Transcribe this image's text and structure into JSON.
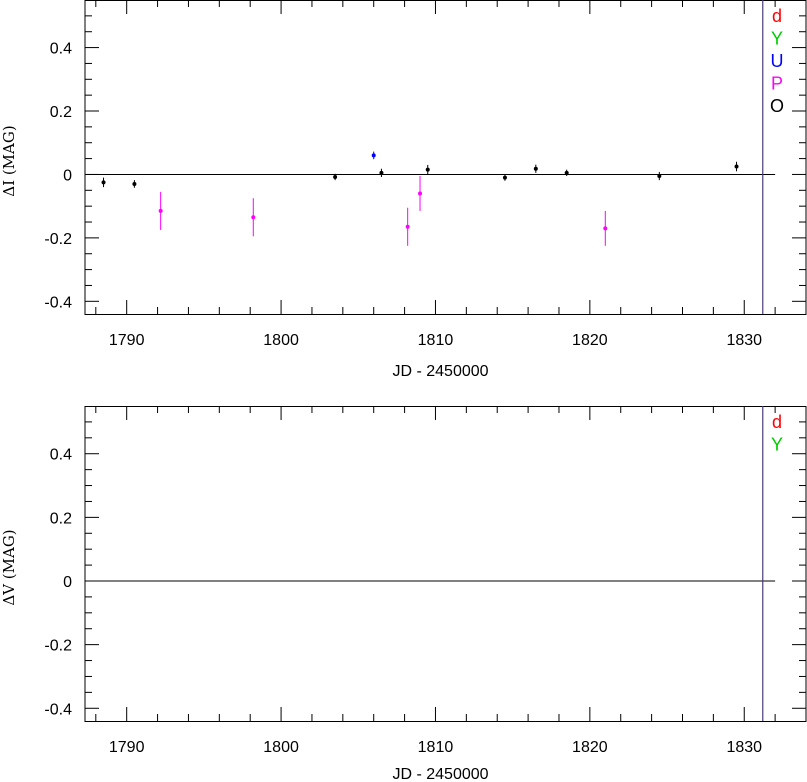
{
  "chart_data": [
    {
      "type": "scatter",
      "title": "",
      "xlabel": "JD - 2450000",
      "ylabel": "ΔI (MAG)",
      "xlim": [
        1787.3,
        1834
      ],
      "ylim": [
        0.55,
        -0.44
      ],
      "x_ticks": [
        1790,
        1800,
        1810,
        1820,
        1830
      ],
      "y_ticks": [
        0.4,
        0.2,
        0,
        -0.2,
        -0.4
      ],
      "y_tick_labels": [
        "0.4",
        "0.2",
        "0",
        "-0.2",
        "-0.4"
      ],
      "zero_line": 0,
      "vertical_marker_x": 1831.2,
      "legend_position": "top-right",
      "legend": [
        {
          "label": "d",
          "color": "#ff0000"
        },
        {
          "label": "Y",
          "color": "#00cc00"
        },
        {
          "label": "U",
          "color": "#0000ff"
        },
        {
          "label": "P",
          "color": "#ff00ff"
        },
        {
          "label": "O",
          "color": "#000000"
        }
      ],
      "series": [
        {
          "name": "O",
          "color": "#000000",
          "points": [
            {
              "x": 1788.5,
              "y": -0.025,
              "err": 0.015
            },
            {
              "x": 1790.5,
              "y": -0.03,
              "err": 0.012
            },
            {
              "x": 1803.5,
              "y": -0.008,
              "err": 0.01
            },
            {
              "x": 1806.5,
              "y": 0.005,
              "err": 0.013
            },
            {
              "x": 1809.5,
              "y": 0.015,
              "err": 0.015
            },
            {
              "x": 1814.5,
              "y": -0.01,
              "err": 0.01
            },
            {
              "x": 1816.5,
              "y": 0.018,
              "err": 0.013
            },
            {
              "x": 1818.5,
              "y": 0.005,
              "err": 0.01
            },
            {
              "x": 1824.5,
              "y": -0.005,
              "err": 0.013
            },
            {
              "x": 1829.5,
              "y": 0.025,
              "err": 0.015
            }
          ]
        },
        {
          "name": "U",
          "color": "#0000ff",
          "points": [
            {
              "x": 1806.0,
              "y": 0.06,
              "err": 0.012
            }
          ]
        },
        {
          "name": "P",
          "color": "#ff00ff",
          "points": [
            {
              "x": 1792.2,
              "y": -0.115,
              "err": 0.06
            },
            {
              "x": 1798.2,
              "y": -0.135,
              "err": 0.06
            },
            {
              "x": 1808.2,
              "y": -0.165,
              "err": 0.06
            },
            {
              "x": 1809.0,
              "y": -0.06,
              "err": 0.055
            },
            {
              "x": 1821.0,
              "y": -0.17,
              "err": 0.055
            }
          ]
        }
      ]
    },
    {
      "type": "scatter",
      "title": "",
      "xlabel": "JD - 2450000",
      "ylabel": "ΔV (MAG)",
      "xlim": [
        1787.3,
        1834
      ],
      "ylim": [
        0.55,
        -0.44
      ],
      "x_ticks": [
        1790,
        1800,
        1810,
        1820,
        1830
      ],
      "y_ticks": [
        0.4,
        0.2,
        0,
        -0.2,
        -0.4
      ],
      "y_tick_labels": [
        "0.4",
        "0.2",
        "0",
        "-0.2",
        "-0.4"
      ],
      "zero_line": 0,
      "vertical_marker_x": 1831.2,
      "legend_position": "top-right",
      "legend": [
        {
          "label": "d",
          "color": "#ff0000"
        },
        {
          "label": "Y",
          "color": "#00cc00"
        }
      ],
      "series": []
    }
  ]
}
